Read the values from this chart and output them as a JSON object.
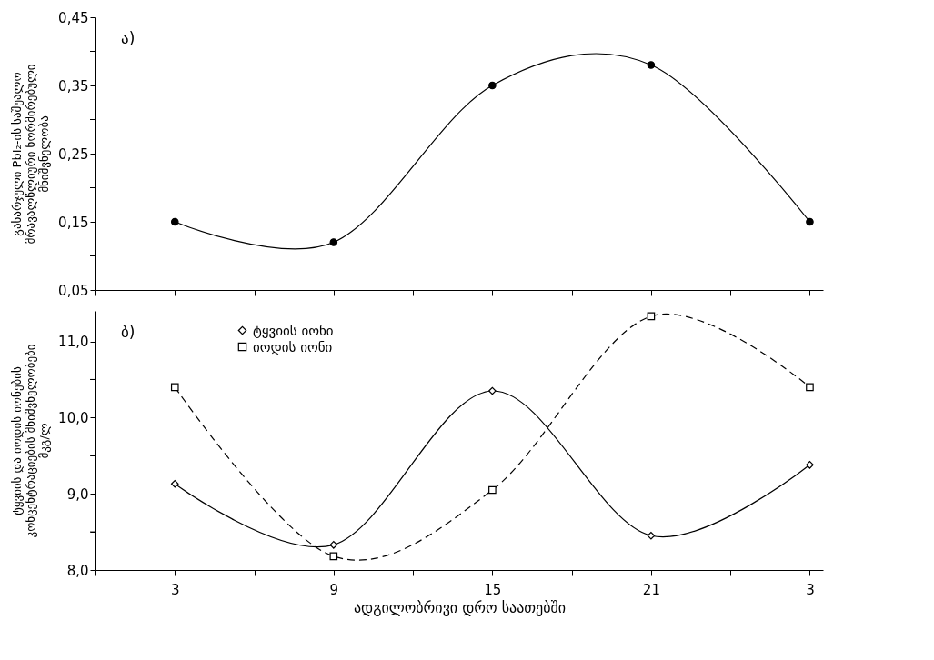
{
  "chart_data": [
    {
      "type": "line",
      "ylabel": "გახარჯული PbI₂-ის საშუალო\nმრავალწლიური ნორმირებული\nმნიშვნელობა",
      "annotations": [
        "ა)"
      ],
      "x": [
        "--01-01T03:00",
        "--01-01T09:00",
        "--01-01T15:00",
        "--01-01T21:00",
        "--01-02T03:00"
      ],
      "series": [
        {
          "color": "#000000",
          "values": [
            0.15,
            0.12,
            0.35,
            0.38,
            0.15
          ],
          "marker": "circle",
          "line_style": "solid"
        }
      ],
      "xlim": [
        "--01-01T00:00",
        "--01-02T03:30"
      ],
      "xticks": [
        {
          "value": "--01-01T00:00",
          "label": null
        },
        {
          "value": "--01-01T03:00",
          "label": null
        },
        {
          "value": "--01-01T06:00",
          "label": null
        },
        {
          "value": "--01-01T09:00",
          "label": null
        },
        {
          "value": "--01-01T12:00",
          "label": null
        },
        {
          "value": "--01-01T15:00",
          "label": null
        },
        {
          "value": "--01-01T18:00",
          "label": null
        },
        {
          "value": "--01-01T21:00",
          "label": null
        },
        {
          "value": "--01-02T00:00",
          "label": null
        },
        {
          "value": "--01-02T03:00",
          "label": null
        }
      ],
      "ylim": [
        0.05,
        0.45
      ],
      "yticks": [
        {
          "value": 0.05,
          "label": "0,05"
        },
        {
          "value": 0.1,
          "label": null
        },
        {
          "value": 0.15,
          "label": "0,15"
        },
        {
          "value": 0.2,
          "label": null
        },
        {
          "value": 0.25,
          "label": "0,25"
        },
        {
          "value": 0.3,
          "label": null
        },
        {
          "value": 0.35,
          "label": "0,35"
        },
        {
          "value": 0.4,
          "label": null
        },
        {
          "value": 0.45,
          "label": "0,45"
        }
      ],
      "tick_labels": "y",
      "legend": false,
      "grid": false
    },
    {
      "type": "line",
      "xlabel": "ადგილობრივი დრო საათებში",
      "ylabel": "ტყვიის და იოდის იონების\nკონცენტრაციების მნიშვნელობები\nმკგ/ლ",
      "annotations": [
        "ბ)"
      ],
      "x": [
        "--01-01T03:00",
        "--01-01T09:00",
        "--01-01T15:00",
        "--01-01T21:00",
        "--01-02T03:00"
      ],
      "series": [
        {
          "name": "ტყვიის იონი",
          "color": "#000000",
          "values": [
            9.13,
            8.33,
            10.35,
            8.45,
            9.38
          ],
          "marker": "diamond",
          "line_style": "solid"
        },
        {
          "name": "იოდის იონი",
          "color": "#000000",
          "values": [
            10.4,
            8.18,
            9.05,
            11.33,
            10.4
          ],
          "marker": "square",
          "line_style": "dashed"
        }
      ],
      "xlim": [
        "--01-01T00:00",
        "--01-02T03:30"
      ],
      "xticks": [
        {
          "value": "--01-01T00:00",
          "label": null
        },
        {
          "value": "--01-01T03:00",
          "label": "3"
        },
        {
          "value": "--01-01T06:00",
          "label": null
        },
        {
          "value": "--01-01T09:00",
          "label": "9"
        },
        {
          "value": "--01-01T12:00",
          "label": null
        },
        {
          "value": "--01-01T15:00",
          "label": "15"
        },
        {
          "value": "--01-01T18:00",
          "label": null
        },
        {
          "value": "--01-01T21:00",
          "label": "21"
        },
        {
          "value": "--01-02T00:00",
          "label": null
        },
        {
          "value": "--01-02T03:00",
          "label": "3"
        }
      ],
      "ylim": [
        8.0,
        11.4
      ],
      "yticks": [
        {
          "value": 8,
          "label": "8,0"
        },
        {
          "value": 8.5,
          "label": null
        },
        {
          "value": 9,
          "label": "9,0"
        },
        {
          "value": 9.5,
          "label": null
        },
        {
          "value": 10,
          "label": "10,0"
        },
        {
          "value": 10.5,
          "label": null
        },
        {
          "value": 11,
          "label": "11,0"
        }
      ],
      "legend": "top left",
      "grid": false
    }
  ]
}
